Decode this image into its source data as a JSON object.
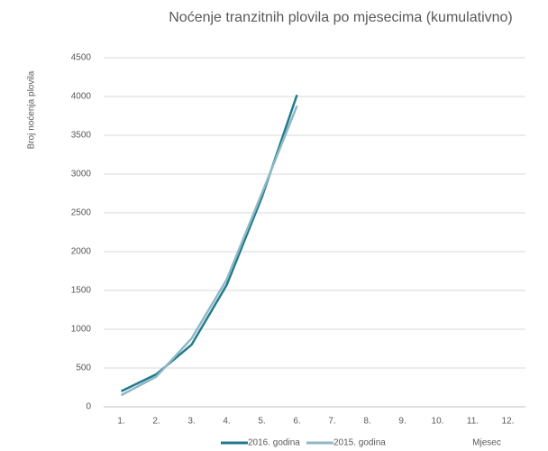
{
  "chart_data": {
    "type": "line",
    "title": "Noćenje tranzitnih plovila po mjesecima (kumulativno)",
    "y_label": "Broj noćenja plovila",
    "x_label": "Mjesec",
    "categories": [
      "1.",
      "2.",
      "3.",
      "4.",
      "5.",
      "6.",
      "7.",
      "8.",
      "9.",
      "10.",
      "11.",
      "12."
    ],
    "series": [
      {
        "name": "2016. godina",
        "color": "#1f7a8c",
        "values": [
          200,
          420,
          800,
          1570,
          2700,
          4020,
          null,
          null,
          null,
          null,
          null,
          null
        ]
      },
      {
        "name": "2015. godina",
        "color": "#8fb8c4",
        "values": [
          150,
          390,
          880,
          1640,
          2750,
          3880,
          null,
          null,
          null,
          null,
          null,
          null
        ]
      }
    ],
    "ylim": [
      0,
      4500
    ],
    "yticks": [
      0,
      500,
      1000,
      1500,
      2000,
      2500,
      3000,
      3500,
      4000,
      4500
    ],
    "grid": true,
    "legend": "bottom"
  }
}
